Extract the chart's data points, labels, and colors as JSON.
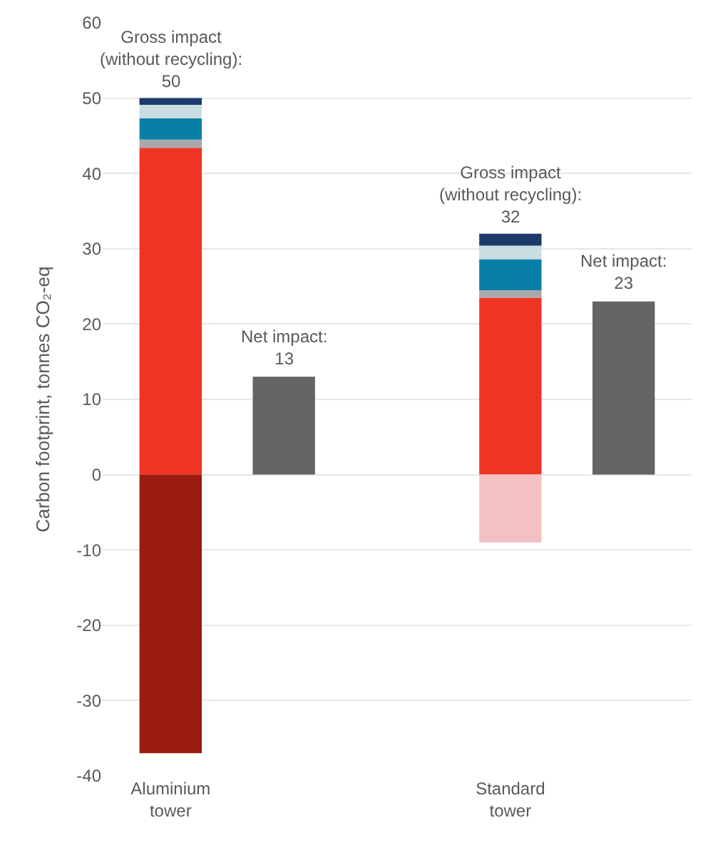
{
  "chart_data": {
    "type": "bar",
    "stacked": true,
    "categories": [
      "Aluminium\ntower",
      null,
      null,
      "Standard\ntower",
      null
    ],
    "ylabel": "Carbon footprint, tonnes CO₂-eq",
    "ylim": [
      -40,
      60
    ],
    "yticks": [
      -40,
      -30,
      -20,
      -10,
      0,
      10,
      20,
      30,
      40,
      50,
      60
    ],
    "grid": "y",
    "series": [
      {
        "color": "#ee3524",
        "values": [
          43.4,
          null,
          null,
          23.5,
          null
        ]
      },
      {
        "color": "#a7a9ac",
        "values": [
          1.1,
          null,
          null,
          1.0,
          null
        ]
      },
      {
        "color": "#0a7fa5",
        "values": [
          2.8,
          null,
          null,
          4.1,
          null
        ]
      },
      {
        "color": "#c9dde3",
        "values": [
          1.8,
          null,
          null,
          1.8,
          null
        ]
      },
      {
        "color": "#1b3a6b",
        "values": [
          0.9,
          null,
          null,
          1.6,
          null
        ]
      },
      {
        "color": "#9b1b10",
        "values": [
          -37,
          null,
          null,
          null,
          null
        ]
      },
      {
        "color": "#f3c1c3",
        "values": [
          null,
          null,
          null,
          -9,
          null
        ]
      },
      {
        "color": "#636466",
        "values": [
          null,
          13,
          null,
          null,
          23
        ],
        "value_labels": [
          null,
          "Net impact:\n13",
          null,
          null,
          "Net impact:\n23"
        ]
      }
    ],
    "annotations": [
      {
        "text": "Gross impact\n(without recycling):\n50",
        "x": "Aluminium\ntower",
        "y": 50
      },
      {
        "text": "Gross impact\n(without recycling):\n32",
        "x": "Standard\ntower",
        "y": 32
      }
    ]
  }
}
